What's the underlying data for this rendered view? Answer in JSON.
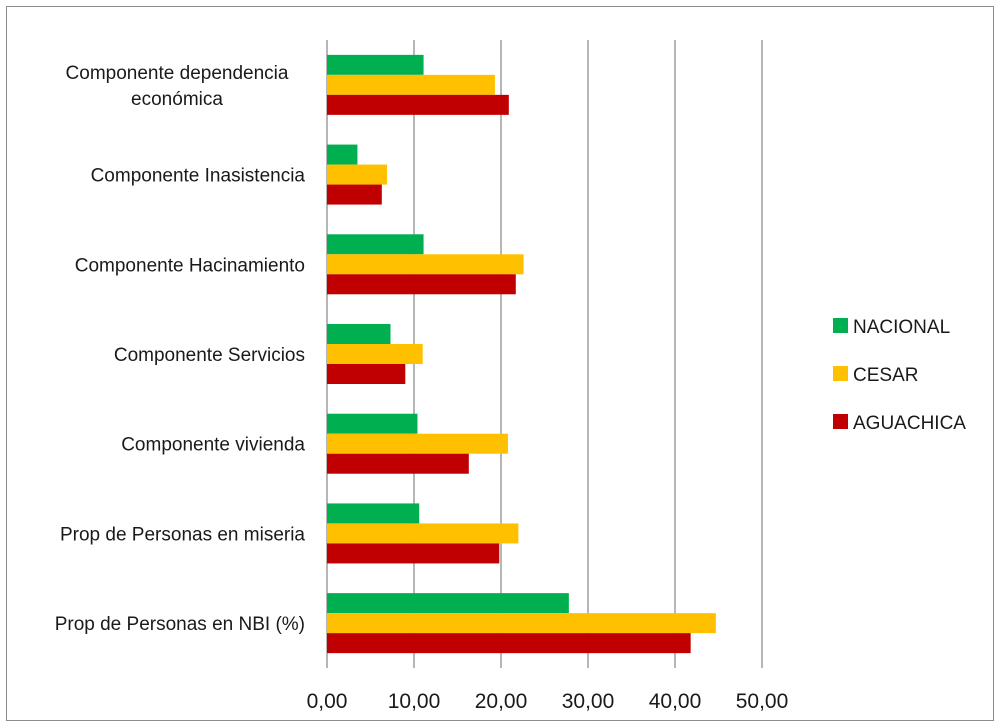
{
  "chart_data": {
    "type": "bar",
    "orientation": "horizontal",
    "categories": [
      [
        "Componente dependencia",
        "económica"
      ],
      [
        "Componente Inasistencia"
      ],
      [
        "Componente Hacinamiento"
      ],
      [
        "Componente Servicios"
      ],
      [
        "Componente vivienda"
      ],
      [
        "Prop de Personas en miseria"
      ],
      [
        "Prop de Personas en NBI (%)"
      ]
    ],
    "series": [
      {
        "name": "NACIONAL",
        "color": "#00b050",
        "values": [
          11.1,
          3.5,
          11.1,
          7.3,
          10.4,
          10.6,
          27.8
        ]
      },
      {
        "name": "CESAR",
        "color": "#ffc000",
        "values": [
          19.3,
          6.9,
          22.6,
          11.0,
          20.8,
          22.0,
          44.7
        ]
      },
      {
        "name": "AGUACHICA",
        "color": "#c00000",
        "values": [
          20.9,
          6.3,
          21.7,
          9.0,
          16.3,
          19.8,
          41.8
        ]
      }
    ],
    "xlim": [
      0,
      50
    ],
    "xticks": [
      0,
      10,
      20,
      30,
      40,
      50
    ],
    "tick_labels": [
      "0,00",
      "10,00",
      "20,00",
      "30,00",
      "40,00",
      "50,00"
    ],
    "grid": "vertical",
    "legend_position": "right"
  }
}
